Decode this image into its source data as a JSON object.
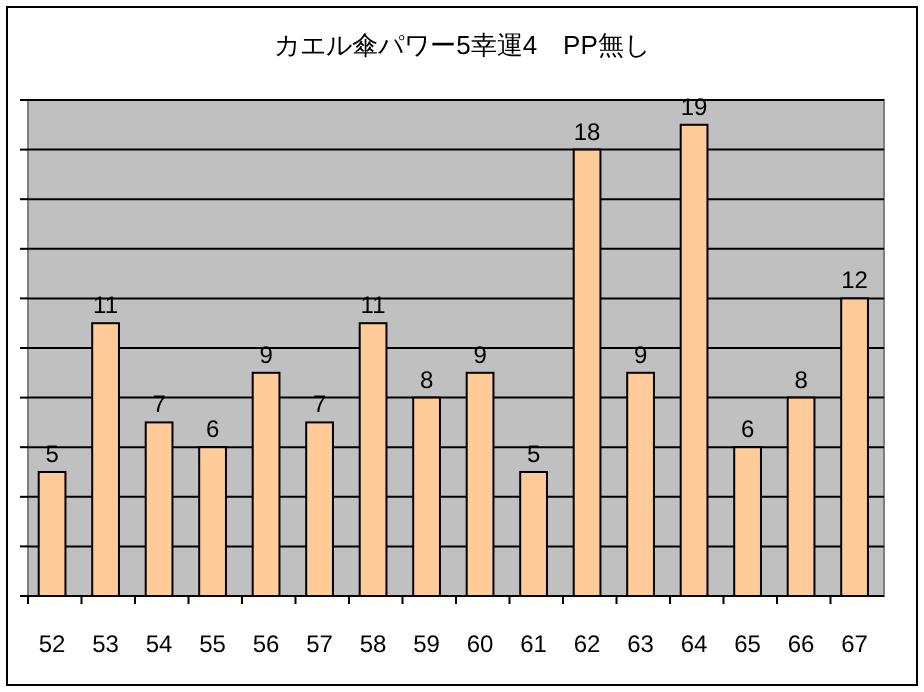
{
  "chart_data": {
    "type": "bar",
    "title": "カエル傘パワー5幸運4　PP無し",
    "categories": [
      "52",
      "53",
      "54",
      "55",
      "56",
      "57",
      "58",
      "59",
      "60",
      "61",
      "62",
      "63",
      "64",
      "65",
      "66",
      "67"
    ],
    "values": [
      5,
      11,
      7,
      6,
      9,
      7,
      11,
      8,
      9,
      5,
      18,
      9,
      19,
      6,
      8,
      12
    ],
    "color": "#ffcc99",
    "data_labels": true,
    "grid": "y",
    "tick_labels": "x",
    "ylim": [
      0,
      20
    ],
    "yticks": [
      {
        "value": 0,
        "label": null
      },
      {
        "value": 2,
        "label": null
      },
      {
        "value": 4,
        "label": null
      },
      {
        "value": 6,
        "label": null
      },
      {
        "value": 8,
        "label": null
      },
      {
        "value": 10,
        "label": null
      },
      {
        "value": 12,
        "label": null
      },
      {
        "value": 14,
        "label": null
      },
      {
        "value": 16,
        "label": null
      },
      {
        "value": 18,
        "label": null
      },
      {
        "value": 20,
        "label": null
      }
    ]
  }
}
